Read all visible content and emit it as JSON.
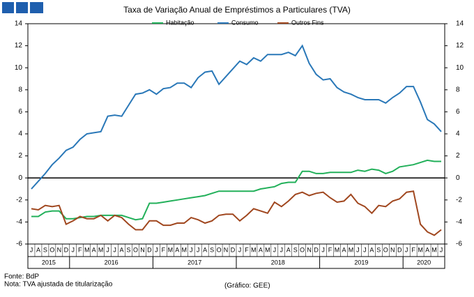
{
  "chart_data": {
    "type": "line",
    "title": "Taxa de Variação Anual de Empréstimos a Particulares (TVA)",
    "categories": [
      "J",
      "A",
      "S",
      "O",
      "N",
      "D",
      "J",
      "F",
      "M",
      "A",
      "M",
      "J",
      "J",
      "A",
      "S",
      "O",
      "N",
      "D",
      "J",
      "F",
      "M",
      "A",
      "M",
      "J",
      "J",
      "A",
      "S",
      "O",
      "N",
      "D",
      "J",
      "F",
      "M",
      "A",
      "M",
      "J",
      "J",
      "A",
      "S",
      "O",
      "N",
      "D",
      "J",
      "F",
      "M",
      "A",
      "M",
      "J",
      "J",
      "A",
      "S",
      "O",
      "N",
      "D",
      "J",
      "F",
      "M",
      "A",
      "M",
      "J"
    ],
    "year_labels": [
      "2015",
      "2016",
      "2017",
      "2018",
      "2019",
      "2020"
    ],
    "series": [
      {
        "name": "Habitação",
        "color": "#22b05a",
        "values": [
          -3.5,
          -3.5,
          -3.1,
          -3.0,
          -3.0,
          -3.7,
          -3.7,
          -3.6,
          -3.5,
          -3.5,
          -3.4,
          -3.4,
          -3.4,
          -3.4,
          -3.6,
          -3.8,
          -3.7,
          -2.3,
          -2.3,
          -2.2,
          -2.1,
          -2.0,
          -1.9,
          -1.8,
          -1.7,
          -1.6,
          -1.4,
          -1.2,
          -1.2,
          -1.2,
          -1.2,
          -1.2,
          -1.2,
          -1.0,
          -0.9,
          -0.8,
          -0.5,
          -0.4,
          -0.4,
          0.6,
          0.6,
          0.4,
          0.4,
          0.5,
          0.5,
          0.5,
          0.5,
          0.7,
          0.6,
          0.8,
          0.7,
          0.4,
          0.6,
          1.0,
          1.1,
          1.2,
          1.4,
          1.6,
          1.5,
          1.5
        ]
      },
      {
        "name": "Consumo",
        "color": "#2a78b8",
        "values": [
          -1.0,
          -0.3,
          0.4,
          1.2,
          1.8,
          2.5,
          2.8,
          3.5,
          4.0,
          4.1,
          4.2,
          5.6,
          5.7,
          5.6,
          6.6,
          7.6,
          7.7,
          8.0,
          7.6,
          8.1,
          8.2,
          8.6,
          8.6,
          8.2,
          9.1,
          9.6,
          9.7,
          8.5,
          9.2,
          9.9,
          10.6,
          10.3,
          10.9,
          10.6,
          11.2,
          11.2,
          11.2,
          11.4,
          11.1,
          12.0,
          10.4,
          9.4,
          8.9,
          9.0,
          8.2,
          7.8,
          7.6,
          7.3,
          7.1,
          7.1,
          7.1,
          6.8,
          7.3,
          7.7,
          8.3,
          8.3,
          6.9,
          5.3,
          4.9,
          4.2
        ]
      },
      {
        "name": "Outros Fins",
        "color": "#a0471f",
        "values": [
          -2.8,
          -2.9,
          -2.5,
          -2.6,
          -2.5,
          -4.2,
          -3.9,
          -3.5,
          -3.7,
          -3.7,
          -3.4,
          -3.9,
          -3.4,
          -3.6,
          -4.2,
          -4.7,
          -4.7,
          -3.9,
          -3.9,
          -4.3,
          -4.3,
          -4.1,
          -4.1,
          -3.6,
          -3.8,
          -4.1,
          -3.9,
          -3.4,
          -3.3,
          -3.3,
          -3.9,
          -3.4,
          -2.8,
          -3.0,
          -3.2,
          -2.2,
          -2.6,
          -2.1,
          -1.5,
          -1.3,
          -1.6,
          -1.4,
          -1.3,
          -1.8,
          -2.2,
          -2.1,
          -1.5,
          -2.3,
          -2.6,
          -3.2,
          -2.5,
          -2.6,
          -2.1,
          -1.9,
          -1.3,
          -1.2,
          -4.2,
          -4.9,
          -5.2,
          -4.7
        ]
      }
    ],
    "ylim": [
      -6,
      14
    ],
    "yticks": [
      -6,
      -4,
      -2,
      0,
      2,
      4,
      6,
      8,
      10,
      12,
      14
    ],
    "y2lim": [
      -6,
      14
    ],
    "y2ticks": [
      -6,
      -4,
      -2,
      0,
      2,
      4,
      6,
      8,
      10,
      12,
      14
    ],
    "grid": false
  },
  "footnotes": {
    "source": "Fonte:  BdP",
    "note": "Nota: TVA ajustada de titularização",
    "credit": "(Gráfico:  GEE)"
  }
}
